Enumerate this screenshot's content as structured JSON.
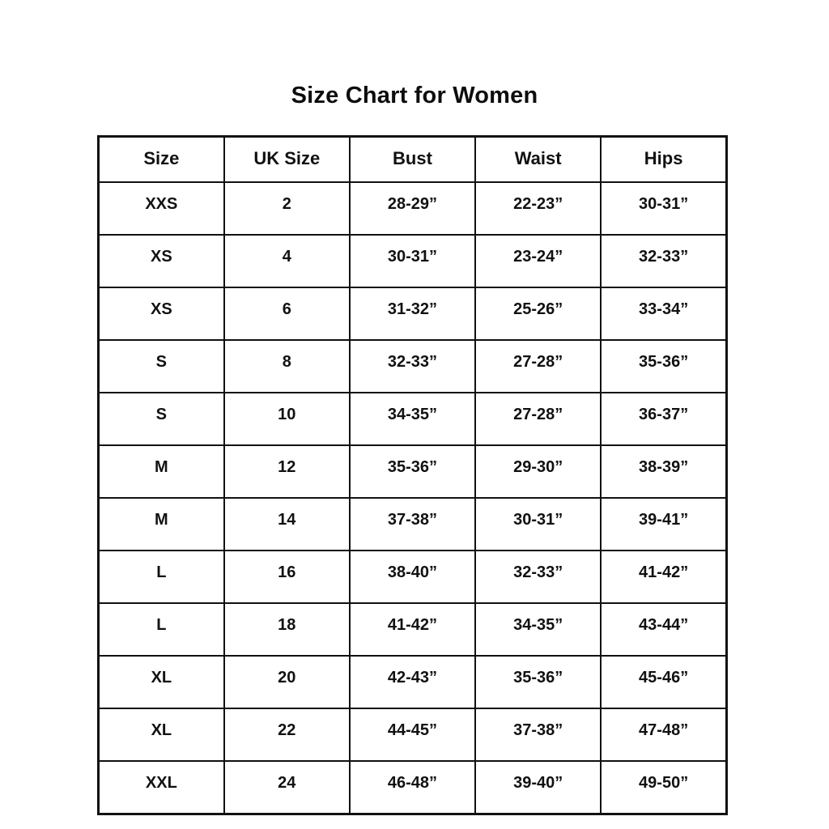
{
  "page": {
    "title": "Size Chart for Women"
  },
  "table": {
    "headers": [
      "Size",
      "UK Size",
      "Bust",
      "Waist",
      "Hips"
    ],
    "rows": [
      [
        "XXS",
        "2",
        "28-29”",
        "22-23”",
        "30-31”"
      ],
      [
        "XS",
        "4",
        "30-31”",
        "23-24”",
        "32-33”"
      ],
      [
        "XS",
        "6",
        "31-32”",
        "25-26”",
        "33-34”"
      ],
      [
        "S",
        "8",
        "32-33”",
        "27-28”",
        "35-36”"
      ],
      [
        "S",
        "10",
        "34-35”",
        "27-28”",
        "36-37”"
      ],
      [
        "M",
        "12",
        "35-36”",
        "29-30”",
        "38-39”"
      ],
      [
        "M",
        "14",
        "37-38”",
        "30-31”",
        "39-41”"
      ],
      [
        "L",
        "16",
        "38-40”",
        "32-33”",
        "41-42”"
      ],
      [
        "L",
        "18",
        "41-42”",
        "34-35”",
        "43-44”"
      ],
      [
        "XL",
        "20",
        "42-43”",
        "35-36”",
        "45-46”"
      ],
      [
        "XL",
        "22",
        "44-45”",
        "37-38”",
        "47-48”"
      ],
      [
        "XXL",
        "24",
        "46-48”",
        "39-40”",
        "49-50”"
      ]
    ]
  },
  "colors": {
    "background": "#ffffff",
    "text": "#111111",
    "border": "#111111"
  }
}
